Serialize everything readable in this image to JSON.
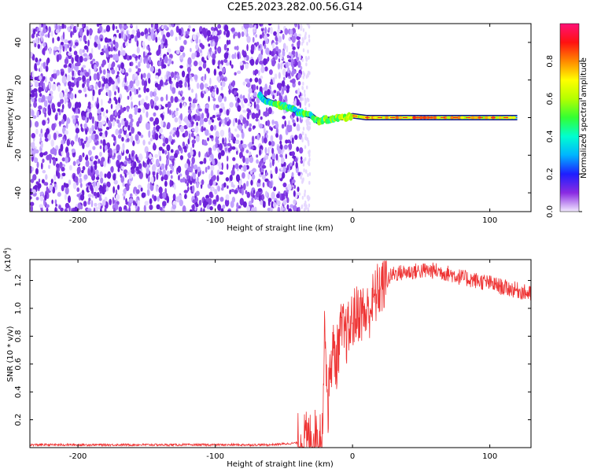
{
  "figure": {
    "title": "C2E5.2023.282.00.56.G14"
  },
  "chart_data": [
    {
      "type": "heatmap",
      "xlabel": "Height of straight line (km)",
      "ylabel": "Frequency (Hz)",
      "xlim": [
        -235,
        130
      ],
      "ylim": [
        -50,
        50
      ],
      "x_ticks": [
        -200,
        -100,
        0,
        100
      ],
      "y_ticks": [
        -40,
        -20,
        0,
        20,
        40
      ],
      "grid": false,
      "noise_region_x": [
        -235,
        -37
      ],
      "signal_track": [
        {
          "x": -68,
          "y": 12,
          "level": 0.45
        },
        {
          "x": -63,
          "y": 9,
          "level": 0.35
        },
        {
          "x": -55,
          "y": 7,
          "level": 0.5
        },
        {
          "x": -50,
          "y": 6,
          "level": 0.45
        },
        {
          "x": -45,
          "y": 5,
          "level": 0.4
        },
        {
          "x": -40,
          "y": 3,
          "level": 0.35
        },
        {
          "x": -35,
          "y": 2,
          "level": 0.5
        },
        {
          "x": -30,
          "y": 1,
          "level": 0.45
        },
        {
          "x": -25,
          "y": -2,
          "level": 0.5
        },
        {
          "x": -20,
          "y": -1,
          "level": 0.55
        },
        {
          "x": -15,
          "y": -1,
          "level": 0.5
        },
        {
          "x": -10,
          "y": 0,
          "level": 0.55
        },
        {
          "x": -5,
          "y": 0,
          "level": 0.6
        },
        {
          "x": 0,
          "y": 1,
          "level": 0.65
        },
        {
          "x": 10,
          "y": 0,
          "level": 0.7
        },
        {
          "x": 20,
          "y": 0,
          "level": 0.75
        },
        {
          "x": 40,
          "y": 0,
          "level": 0.78
        },
        {
          "x": 60,
          "y": 0,
          "level": 0.75
        },
        {
          "x": 80,
          "y": 0,
          "level": 0.7
        },
        {
          "x": 100,
          "y": 0,
          "level": 0.7
        },
        {
          "x": 120,
          "y": 0,
          "level": 0.65
        }
      ],
      "colorbar": {
        "label": "Normalized spectral amplitude",
        "range": [
          0,
          1
        ],
        "ticks": [
          "0.0",
          "0.2",
          "0.4",
          "0.6",
          "0.8"
        ]
      }
    },
    {
      "type": "line",
      "xlabel": "Height of straight line (km)",
      "ylabel": "SNR (10 * v/v)",
      "scale_label": "(x10",
      "scale_exponent": "4",
      "xlim": [
        -235,
        130
      ],
      "ylim": [
        0,
        1.35
      ],
      "x_ticks": [
        -200,
        -100,
        0,
        100
      ],
      "y_ticks": [
        0.2,
        0.4,
        0.6,
        0.8,
        1.0,
        1.2
      ],
      "line_color": "#ee3333",
      "grid": false,
      "series": [
        {
          "x": [
            -235,
            -200,
            -150,
            -100,
            -60,
            -45,
            -35,
            -28,
            -22,
            -20,
            -18,
            -16,
            -14,
            -12,
            -10,
            -8,
            -5,
            -2,
            0,
            5,
            10,
            15,
            20,
            25,
            30,
            40,
            50,
            60,
            70,
            80,
            90,
            100,
            110,
            120,
            130
          ],
          "values": [
            0.02,
            0.02,
            0.02,
            0.02,
            0.02,
            0.03,
            0.04,
            0.06,
            0.1,
            0.95,
            0.25,
            0.6,
            0.7,
            0.6,
            0.75,
            0.85,
            0.8,
            0.85,
            0.92,
            0.98,
            0.95,
            1.05,
            1.15,
            1.2,
            1.25,
            1.26,
            1.27,
            1.27,
            1.25,
            1.22,
            1.2,
            1.18,
            1.15,
            1.13,
            1.1
          ]
        }
      ]
    }
  ]
}
